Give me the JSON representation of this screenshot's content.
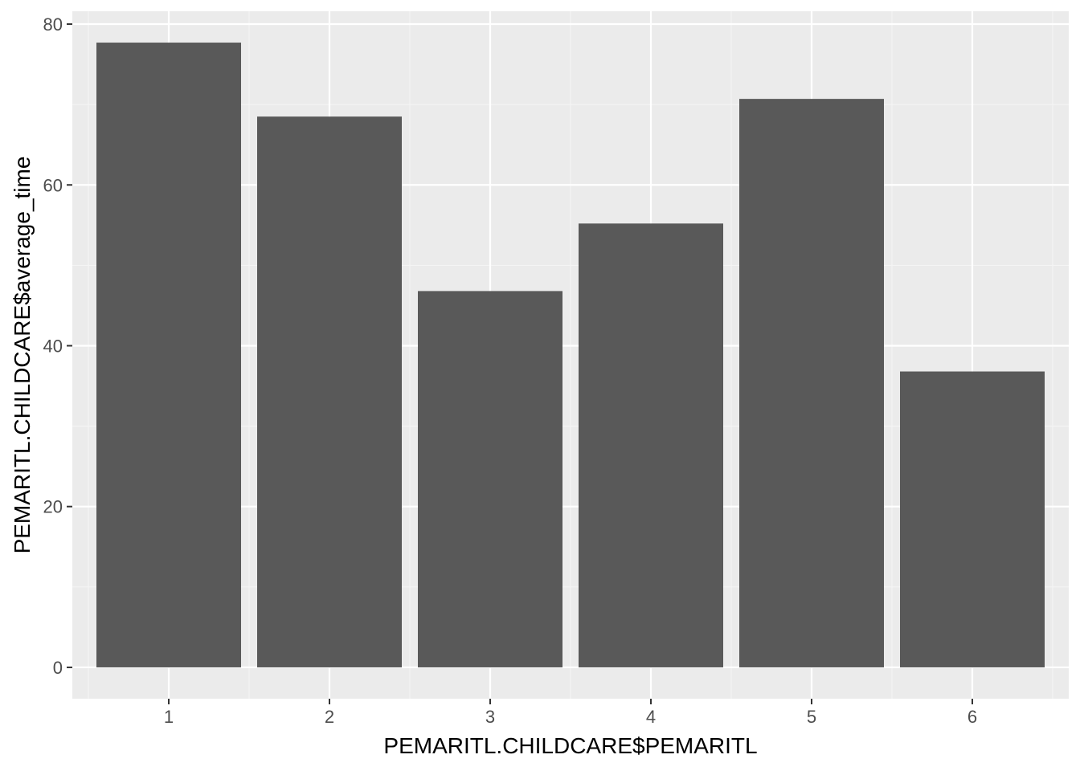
{
  "chart_data": {
    "type": "bar",
    "title": "",
    "xlabel": "PEMARITL.CHILDCARE$PEMARITL",
    "ylabel": "PEMARITL.CHILDCARE$average_time",
    "categories": [
      "1",
      "2",
      "3",
      "4",
      "5",
      "6"
    ],
    "values": [
      77.7,
      68.5,
      46.8,
      55.2,
      70.7,
      36.8
    ],
    "ylim": [
      -3.9,
      81.6
    ],
    "yticks": [
      0,
      20,
      40,
      60,
      80
    ],
    "ytick_labels": [
      "0",
      "20",
      "40",
      "60",
      "80"
    ],
    "grid": true,
    "legend": "none",
    "colors": {
      "panel_background": "#ebebeb",
      "grid_major": "#ffffff",
      "grid_minor": "#f5f5f5",
      "bar_fill": "#595959",
      "tick_text": "#4d4d4d",
      "tick_mark": "#333333",
      "axis_title": "#000000"
    }
  }
}
